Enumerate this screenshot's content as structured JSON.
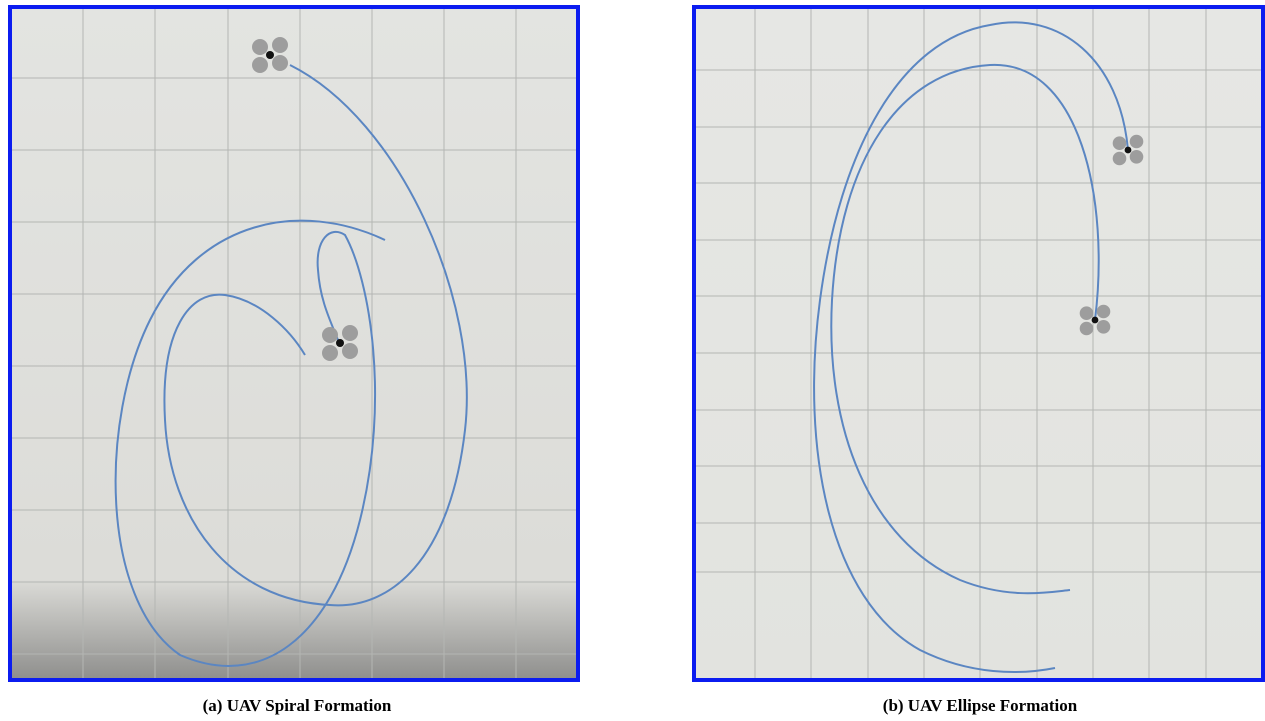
{
  "panels": [
    {
      "caption": "(a) UAV Spiral Formation"
    },
    {
      "caption": "(b) UAV Ellipse Formation"
    }
  ]
}
